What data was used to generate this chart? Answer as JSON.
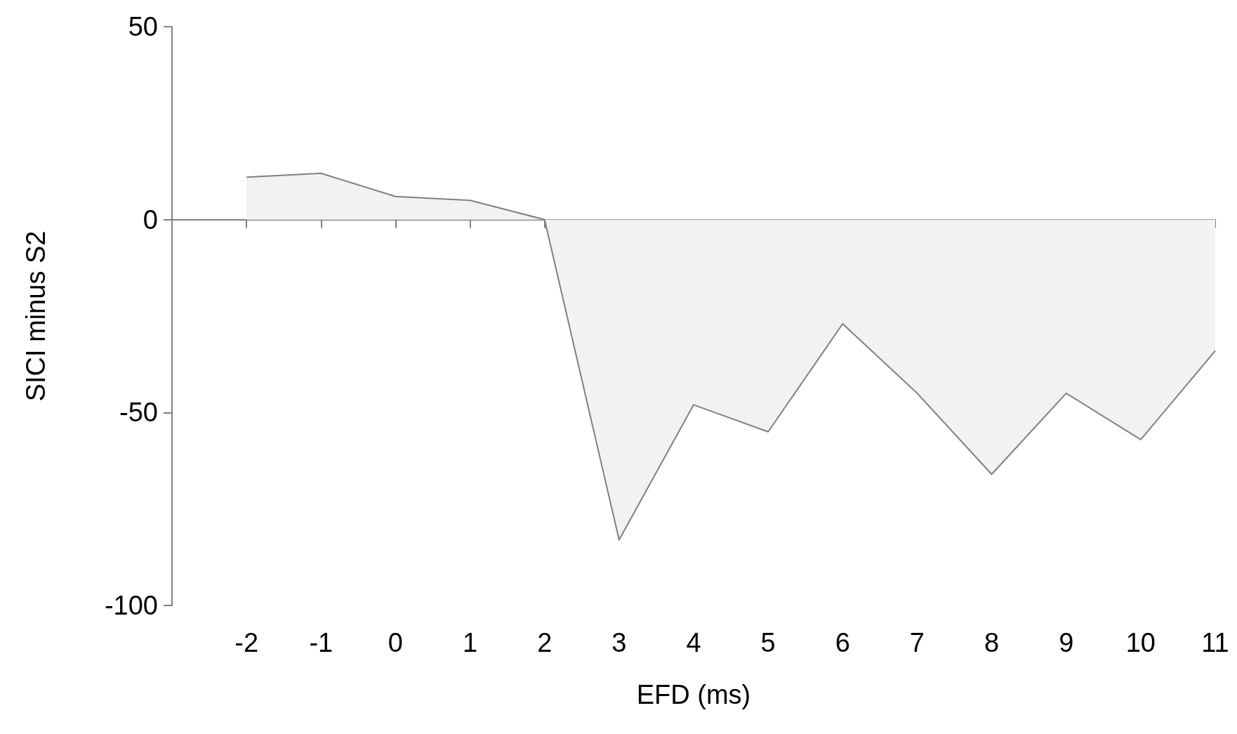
{
  "chart_data": {
    "type": "area",
    "xlabel": "EFD (ms)",
    "ylabel": "SICI minus S2",
    "x": [
      -2,
      -1,
      0,
      1,
      2,
      3,
      4,
      5,
      6,
      7,
      8,
      9,
      10,
      11
    ],
    "series": [
      {
        "color": "#808080",
        "values": [
          11,
          12,
          6,
          5,
          0,
          -83,
          -48,
          -55,
          -27,
          -45,
          -66,
          -45,
          -57,
          -34
        ]
      }
    ],
    "xlim": [
      -3,
      11
    ],
    "xticks": [
      -2,
      -1,
      0,
      1,
      2,
      3,
      4,
      5,
      6,
      7,
      8,
      9,
      10,
      11
    ],
    "ylim": [
      -100,
      50
    ],
    "yticks": [
      -100,
      -50,
      0,
      50
    ],
    "marker": "none"
  }
}
